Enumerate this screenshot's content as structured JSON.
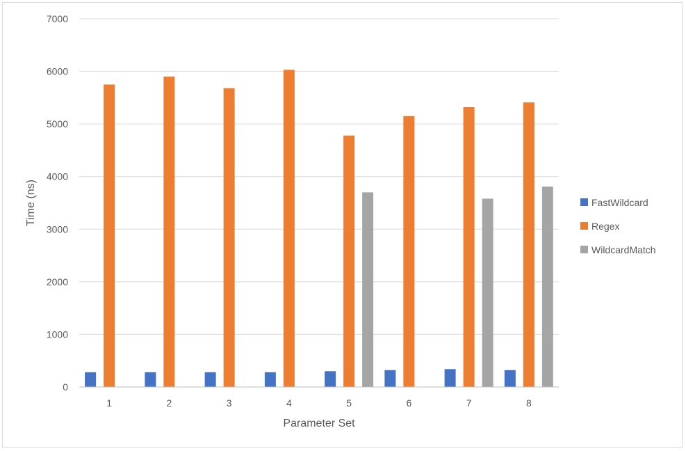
{
  "chart_data": {
    "type": "bar",
    "title": "",
    "xlabel": "Parameter Set",
    "ylabel": "Time (ns)",
    "ylim": [
      0,
      7000
    ],
    "yticks": [
      0,
      1000,
      2000,
      3000,
      4000,
      5000,
      6000,
      7000
    ],
    "grid": true,
    "legend_position": "right",
    "categories": [
      "1",
      "2",
      "3",
      "4",
      "5",
      "6",
      "7",
      "8"
    ],
    "series": [
      {
        "name": "FastWildcard",
        "color": "#4472c4",
        "values": [
          280,
          280,
          280,
          280,
          300,
          320,
          340,
          320
        ]
      },
      {
        "name": "Regex",
        "color": "#ed7d31",
        "values": [
          5750,
          5900,
          5680,
          6030,
          4780,
          5150,
          5320,
          5410
        ]
      },
      {
        "name": "WildcardMatch",
        "color": "#a5a5a5",
        "values": [
          0,
          0,
          0,
          0,
          3700,
          0,
          3580,
          3810
        ]
      }
    ]
  }
}
